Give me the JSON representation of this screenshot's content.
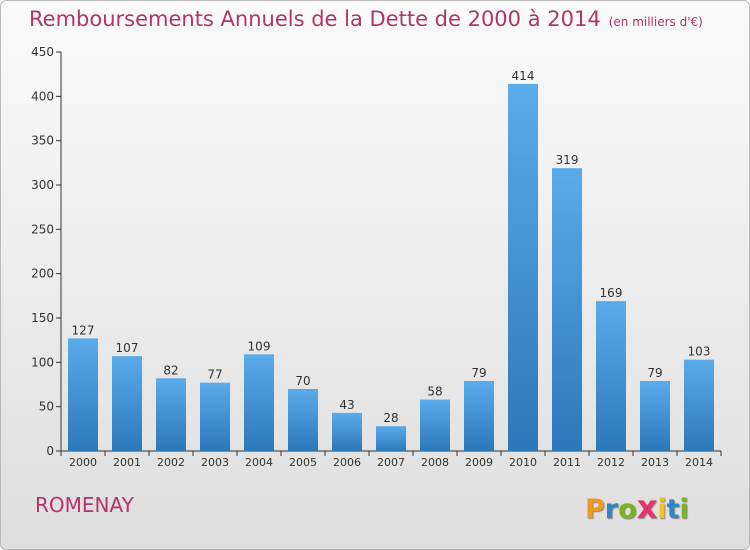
{
  "chart_data": {
    "type": "bar",
    "title": "Remboursements Annuels de la Dette de 2000 à 2014",
    "unit_note": "(en milliers d'€)",
    "categories": [
      "2000",
      "2001",
      "2002",
      "2003",
      "2004",
      "2005",
      "2006",
      "2007",
      "2008",
      "2009",
      "2010",
      "2011",
      "2012",
      "2013",
      "2014"
    ],
    "values": [
      127,
      107,
      82,
      77,
      109,
      70,
      43,
      28,
      58,
      79,
      414,
      319,
      169,
      79,
      103
    ],
    "yticks": [
      0,
      50,
      100,
      150,
      200,
      250,
      300,
      350,
      400,
      450
    ],
    "ylim": [
      0,
      450
    ],
    "xlabel": "",
    "ylabel": "",
    "grid": false
  },
  "footer": {
    "place": "ROMENAY",
    "brand_letters": [
      "P",
      "r",
      "o",
      "x",
      "i",
      "t",
      "i"
    ],
    "brand_colors": [
      "#f29a1e",
      "#2e86c9",
      "#7ab51d",
      "#e6336b",
      "#f2c418",
      "#2e86c9",
      "#7ab51d"
    ]
  },
  "colors": {
    "title": "#b1356b",
    "bar_light": "#5aabea",
    "bar_dark": "#2b78bb"
  }
}
